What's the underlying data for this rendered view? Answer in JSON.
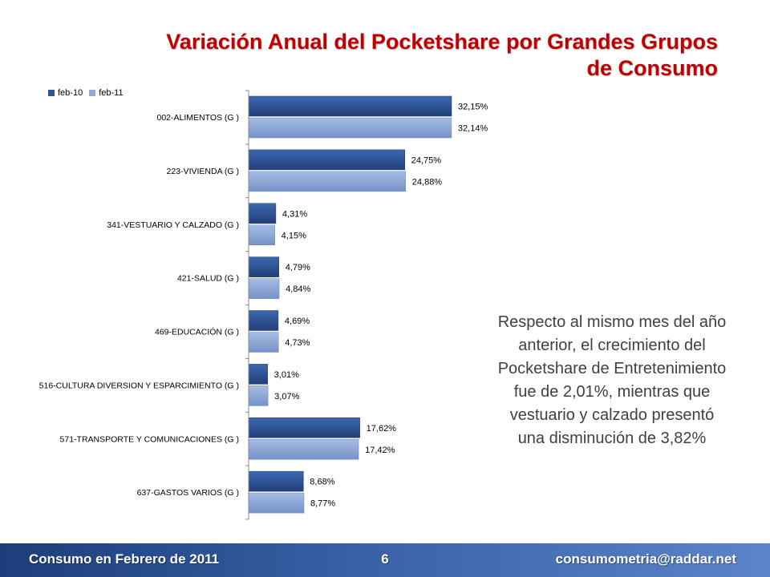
{
  "slide": {
    "title_line1": "Variación Anual del Pocketshare por Grandes Grupos",
    "title_line2": "de Consumo",
    "side_text": "Respecto al mismo mes del año anterior, el crecimiento del Pocketshare de Entretenimiento fue de 2,01%, mientras que vestuario y calzado presentó una disminución de 3,82%",
    "footer_left": "Consumo en Febrero de 2011",
    "footer_center": "6",
    "footer_right": "consumometria@raddar.net"
  },
  "colors": {
    "title": "#c00000",
    "series_feb10": "#2f5496",
    "series_feb11": "#8ea9db",
    "footer_start": "#1c3e7a",
    "footer_end": "#5b84c9"
  },
  "chart_data": {
    "type": "bar",
    "orientation": "horizontal",
    "categories": [
      "002-ALIMENTOS (G )",
      "223-VIVIENDA (G )",
      "341-VESTUARIO Y CALZADO (G )",
      "421-SALUD (G )",
      "469-EDUCACIÓN (G )",
      "516-CULTURA DIVERSION Y ESPARCIMIENTO (G )",
      "571-TRANSPORTE Y COMUNICACIONES (G )",
      "637-GASTOS VARIOS (G )"
    ],
    "series": [
      {
        "name": "feb-10",
        "values": [
          32.15,
          24.75,
          4.31,
          4.79,
          4.69,
          3.01,
          17.62,
          8.68
        ],
        "labels": [
          "32,15%",
          "24,75%",
          "4,31%",
          "4,79%",
          "4,69%",
          "3,01%",
          "17,62%",
          "8,68%"
        ]
      },
      {
        "name": "feb-11",
        "values": [
          32.14,
          24.88,
          4.15,
          4.84,
          4.73,
          3.07,
          17.42,
          8.77
        ],
        "labels": [
          "32,14%",
          "24,88%",
          "4,15%",
          "4,84%",
          "4,73%",
          "3,07%",
          "17,42%",
          "8,77%"
        ]
      }
    ],
    "legend": "top-left",
    "xlim": [
      0,
      32.15
    ],
    "grid": false
  }
}
